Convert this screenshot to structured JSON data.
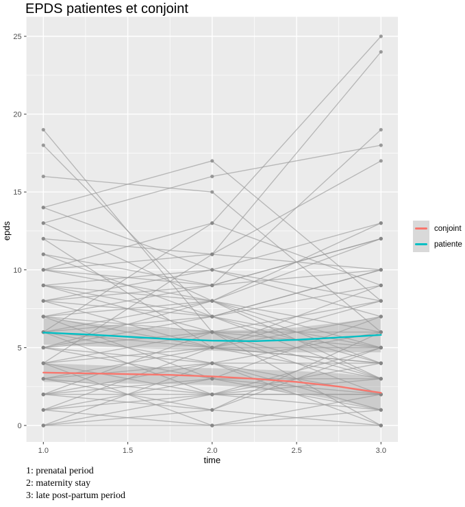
{
  "chart_data": {
    "type": "line",
    "title": "EPDS patientes et conjoint",
    "xlabel": "time",
    "ylabel": "epds",
    "xlim": [
      1,
      3
    ],
    "ylim": [
      0,
      25
    ],
    "x_tick_values": [
      1.0,
      1.5,
      2.0,
      2.5,
      3.0
    ],
    "x_tick_labels": [
      "1.0",
      "1.5",
      "2.0",
      "2.5",
      "3.0"
    ],
    "y_tick_values": [
      0,
      5,
      10,
      15,
      20,
      25
    ],
    "y_tick_labels": [
      "0",
      "5",
      "10",
      "15",
      "20",
      "25"
    ],
    "grid": "on",
    "panel_bg": "#ebebeb",
    "grid_color": "#ffffff",
    "tick_label_color": "#4d4d4d",
    "spaghetti": {
      "description": "individual EPDS trajectories (gray lines with points) at times 1,2,3",
      "times": [
        1,
        2,
        3
      ],
      "line_color": "rgba(150,150,150,0.62)",
      "point_color": "rgba(134,134,134,0.80)",
      "trajectories": [
        [
          19,
          6,
          5
        ],
        [
          18,
          7,
          3
        ],
        [
          16,
          15,
          6
        ],
        [
          14,
          17,
          8
        ],
        [
          13,
          16,
          18
        ],
        [
          12,
          11,
          17
        ],
        [
          11,
          9,
          19
        ],
        [
          10,
          13,
          9
        ],
        [
          13,
          8,
          12
        ],
        [
          12,
          5,
          4
        ],
        [
          11,
          7,
          10
        ],
        [
          10,
          8,
          13
        ],
        [
          14,
          10,
          7
        ],
        [
          6,
          13,
          25
        ],
        [
          4,
          11,
          24
        ],
        [
          9,
          10,
          8
        ],
        [
          8,
          9,
          12
        ],
        [
          7,
          8,
          6
        ],
        [
          6,
          7,
          10
        ],
        [
          5,
          6,
          2
        ],
        [
          4,
          5,
          7
        ],
        [
          3,
          4,
          0
        ],
        [
          2,
          3,
          1
        ],
        [
          1,
          2,
          3
        ],
        [
          0,
          1,
          0
        ],
        [
          9,
          7,
          4
        ],
        [
          8,
          5,
          9
        ],
        [
          7,
          6,
          8
        ],
        [
          6,
          4,
          1
        ],
        [
          5,
          3,
          3
        ],
        [
          4,
          2,
          5
        ],
        [
          3,
          2,
          4
        ],
        [
          2,
          1,
          5
        ],
        [
          1,
          0,
          2
        ],
        [
          0,
          2,
          1
        ],
        [
          10,
          11,
          10
        ],
        [
          9,
          8,
          3
        ],
        [
          8,
          7,
          5
        ],
        [
          7,
          5,
          5
        ],
        [
          6,
          5,
          3
        ],
        [
          5,
          4,
          6
        ],
        [
          4,
          6,
          6
        ],
        [
          3,
          5,
          8
        ],
        [
          2,
          4,
          4
        ],
        [
          1,
          3,
          2
        ],
        [
          0,
          0,
          0
        ],
        [
          7,
          3,
          7
        ],
        [
          6,
          2,
          2
        ],
        [
          5,
          8,
          5
        ],
        [
          9,
          6,
          0
        ],
        [
          0,
          4,
          2
        ],
        [
          1,
          5,
          4
        ],
        [
          3,
          1,
          6
        ],
        [
          2,
          6,
          3
        ],
        [
          8,
          10,
          13
        ],
        [
          5,
          7,
          9
        ],
        [
          6,
          8,
          4
        ],
        [
          4,
          0,
          1
        ],
        [
          2,
          2,
          2
        ],
        [
          10,
          9,
          10
        ],
        [
          7,
          9,
          12
        ]
      ]
    },
    "ribbon_color": "rgba(55,55,55,0.17)",
    "series": [
      {
        "name": "conjoint",
        "color": "#F8766D",
        "x": [
          1,
          1.25,
          1.5,
          1.75,
          2,
          2.25,
          2.5,
          2.75,
          3
        ],
        "y": [
          3.4,
          3.35,
          3.3,
          3.25,
          3.15,
          3.0,
          2.8,
          2.5,
          2.1
        ],
        "upper": [
          4.0,
          3.9,
          3.8,
          3.72,
          3.68,
          3.6,
          3.5,
          3.35,
          3.1
        ],
        "lower": [
          2.8,
          2.75,
          2.7,
          2.65,
          2.6,
          2.4,
          2.1,
          1.6,
          1.0
        ]
      },
      {
        "name": "patiente",
        "color": "#00BFC4",
        "x": [
          1,
          1.25,
          1.5,
          1.75,
          2,
          2.25,
          2.5,
          2.75,
          3
        ],
        "y": [
          5.97,
          5.85,
          5.7,
          5.55,
          5.45,
          5.42,
          5.5,
          5.65,
          5.82
        ],
        "upper": [
          6.9,
          6.6,
          6.35,
          6.2,
          6.1,
          6.15,
          6.3,
          6.6,
          6.95
        ],
        "lower": [
          5.2,
          5.1,
          5.0,
          4.9,
          4.8,
          4.72,
          4.7,
          4.7,
          4.7
        ]
      }
    ],
    "legend": {
      "position": "right",
      "items": [
        {
          "label": "conjoint",
          "color": "#F8766D"
        },
        {
          "label": "patiente",
          "color": "#00BFC4"
        }
      ]
    },
    "footnotes": [
      "1: prenatal period",
      "2: maternity stay",
      "3: late post-partum period"
    ]
  }
}
